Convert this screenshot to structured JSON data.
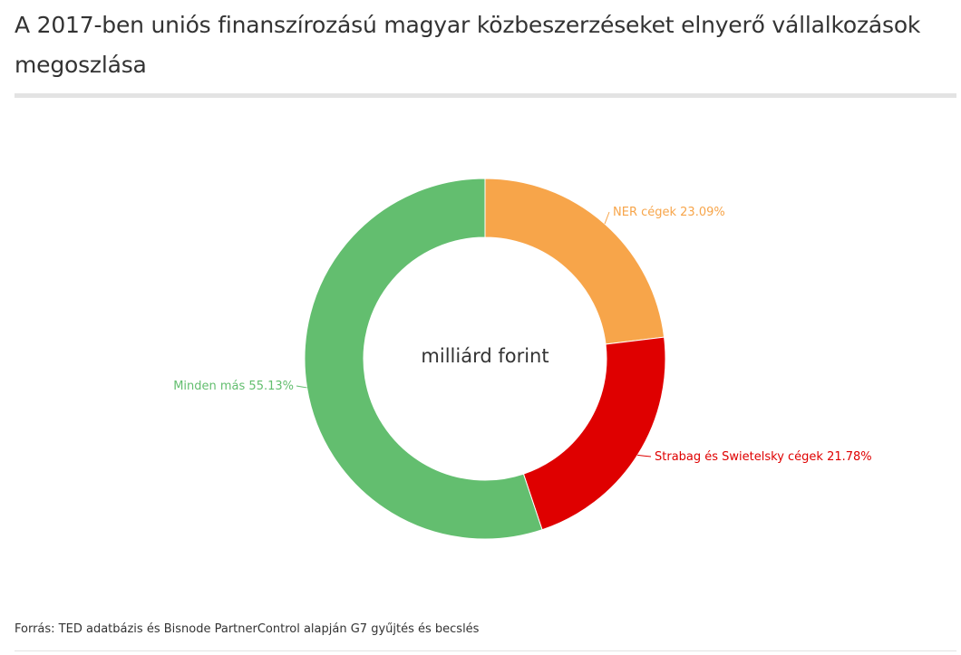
{
  "title": "A 2017-ben uniós finanszírozású magyar közbeszerzéseket elnyerő vállalkozások megoszlása",
  "source": "Forrás: TED adatbázis és Bisnode PartnerControl alapján G7 gyűjtés és becslés",
  "chart_data": {
    "type": "pie",
    "variant": "donut",
    "center_label": "milliárd forint",
    "slices": [
      {
        "label": "NER cégek 23.09%",
        "name": "NER cégek",
        "value": 23.09,
        "color": "#f7a54a"
      },
      {
        "label": "Strabag és Swietelsky cégek 21.78%",
        "name": "Strabag és Swietelsky cégek",
        "value": 21.78,
        "color": "#df0000"
      },
      {
        "label": "Minden más 55.13%",
        "name": "Minden más",
        "value": 55.13,
        "color": "#63be6f"
      }
    ]
  }
}
